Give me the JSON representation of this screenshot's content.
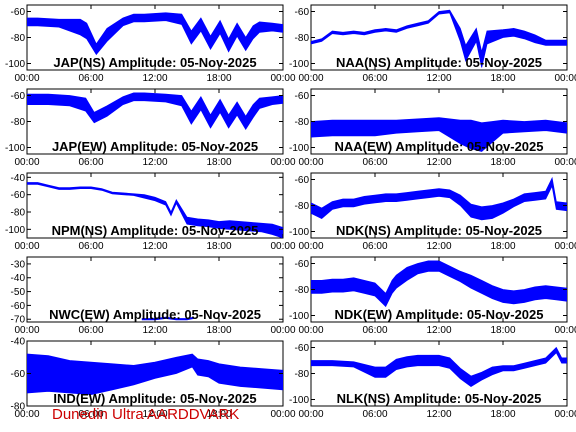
{
  "footer": "Dunedin Ultra AARDDVARK",
  "colors": {
    "trace": "#0000ff",
    "axes": "#000000",
    "footer": "#cc0000"
  },
  "chart_data": [
    {
      "type": "line",
      "title": "JAP(NS) Amplitude: 05-Nov-2025",
      "x_tick_labels": [
        "00:00",
        "06:00",
        "12:00",
        "18:00",
        "00:00"
      ],
      "y_tick_labels": [
        "-60",
        "-80",
        "-100"
      ],
      "xlim": [
        0,
        24
      ],
      "ylim": [
        -105,
        -55
      ],
      "grid": false,
      "series": [
        {
          "x": [
            0,
            1,
            3,
            5,
            5.6,
            6.5,
            7.5,
            9,
            10,
            11,
            13,
            14.5,
            15.4,
            16.3,
            17.2,
            18.1,
            18.9,
            19.7,
            20.5,
            21.2,
            21.8,
            23,
            24
          ],
          "y": [
            -68,
            -68,
            -69,
            -72,
            -75,
            -89,
            -78,
            -68,
            -65,
            -65,
            -64,
            -66,
            -80,
            -70,
            -84,
            -72,
            -86,
            -74,
            -85,
            -76,
            -72,
            -72,
            -73
          ],
          "spread": [
            3,
            3,
            3,
            6,
            6,
            4,
            5,
            3,
            3,
            3,
            3,
            4,
            5,
            5,
            5,
            5,
            5,
            5,
            5,
            5,
            4,
            3,
            3
          ]
        }
      ]
    },
    {
      "type": "line",
      "title": "NAA(NS) Amplitude: 05-Nov-2025",
      "x_tick_labels": [
        "00:00",
        "06:00",
        "12:00",
        "18:00",
        "00:00"
      ],
      "y_tick_labels": [
        "-60",
        "-80",
        "-100"
      ],
      "xlim": [
        0,
        24
      ],
      "ylim": [
        -105,
        -55
      ],
      "grid": false,
      "series": [
        {
          "x": [
            0,
            1,
            2,
            3,
            4,
            5,
            6,
            7,
            8,
            9,
            10,
            11,
            12,
            13,
            14,
            14.5,
            15.5,
            16,
            16.5,
            18,
            19,
            20,
            21,
            22,
            23,
            24
          ],
          "y": [
            -84,
            -82,
            -76,
            -77,
            -76,
            -77,
            -75,
            -74,
            -75,
            -72,
            -70,
            -68,
            -61,
            -60,
            -78,
            -92,
            -78,
            -97,
            -80,
            -77,
            -76,
            -78,
            -81,
            -84,
            -84,
            -84
          ],
          "spread": [
            1,
            1,
            1,
            1,
            1,
            1,
            1,
            1,
            1,
            1,
            1,
            1,
            1,
            1,
            5,
            6,
            5,
            6,
            5,
            3,
            3,
            3,
            3,
            2,
            2,
            2
          ]
        }
      ]
    },
    {
      "type": "line",
      "title": "JAP(EW) Amplitude: 05-Nov-2025",
      "x_tick_labels": [
        "00:00",
        "06:00",
        "12:00",
        "18:00",
        "00:00"
      ],
      "y_tick_labels": [
        "-60",
        "-80",
        "-100"
      ],
      "xlim": [
        0,
        24
      ],
      "ylim": [
        -105,
        -55
      ],
      "grid": false,
      "series": [
        {
          "x": [
            0,
            2,
            4,
            5.5,
            6.3,
            7.5,
            9,
            10,
            11,
            13,
            14.5,
            15.4,
            16.3,
            17.2,
            18.1,
            18.9,
            19.7,
            20.5,
            21.2,
            21.8,
            23,
            24
          ],
          "y": [
            -63,
            -63,
            -64,
            -67,
            -77,
            -72,
            -64,
            -61,
            -61,
            -62,
            -64,
            -77,
            -66,
            -80,
            -68,
            -80,
            -70,
            -81,
            -72,
            -66,
            -64,
            -63
          ],
          "spread": [
            4,
            4,
            4,
            5,
            4,
            4,
            3,
            3,
            3,
            3,
            4,
            5,
            5,
            5,
            5,
            5,
            5,
            5,
            5,
            4,
            3,
            3
          ]
        }
      ]
    },
    {
      "type": "line",
      "title": "NAA(EW) Amplitude: 05-Nov-2025",
      "x_tick_labels": [
        "00:00",
        "06:00",
        "12:00",
        "18:00",
        "00:00"
      ],
      "y_tick_labels": [
        "-60",
        "-80",
        "-100"
      ],
      "xlim": [
        0,
        24
      ],
      "ylim": [
        -105,
        -55
      ],
      "grid": false,
      "series": [
        {
          "x": [
            0,
            2,
            4,
            6,
            8,
            10,
            12,
            13,
            14,
            15,
            16,
            17,
            18,
            20,
            22,
            24
          ],
          "y": [
            -86,
            -85,
            -85,
            -85,
            -84,
            -83,
            -82,
            -85,
            -88,
            -90,
            -92,
            -88,
            -84,
            -84,
            -83,
            -85
          ],
          "spread": [
            6,
            6,
            6,
            6,
            5,
            5,
            5,
            7,
            9,
            11,
            11,
            8,
            5,
            4,
            4,
            4
          ]
        }
      ]
    },
    {
      "type": "line",
      "title": "NPM(NS) Amplitude: 05-Nov-2025",
      "x_tick_labels": [
        "00:00",
        "06:00",
        "12:00",
        "18:00",
        "00:00"
      ],
      "y_tick_labels": [
        "-40",
        "-60",
        "-80",
        "-100"
      ],
      "xlim": [
        0,
        24
      ],
      "ylim": [
        -110,
        -35
      ],
      "grid": false,
      "series": [
        {
          "x": [
            0,
            1,
            2,
            3,
            4,
            5,
            6,
            7,
            8,
            9,
            10,
            11,
            12,
            13,
            13.5,
            14,
            15,
            16,
            17,
            18,
            19,
            20,
            21,
            22,
            23,
            24
          ],
          "y": [
            -47,
            -47,
            -50,
            -53,
            -53,
            -52,
            -52,
            -54,
            -58,
            -59,
            -60,
            -62,
            -65,
            -70,
            -82,
            -68,
            -90,
            -92,
            -93,
            -95,
            -95,
            -96,
            -97,
            -98,
            -100,
            -104
          ],
          "spread": [
            1,
            1,
            1,
            1,
            1,
            1,
            1,
            1,
            1,
            1,
            1,
            2,
            2,
            2,
            2,
            2,
            4,
            4,
            4,
            4,
            5,
            5,
            5,
            5,
            6,
            6
          ]
        }
      ]
    },
    {
      "type": "line",
      "title": "NDK(NS) Amplitude: 05-Nov-2025",
      "x_tick_labels": [
        "00:00",
        "06:00",
        "12:00",
        "18:00",
        "00:00"
      ],
      "y_tick_labels": [
        "-60",
        "-80",
        "-100"
      ],
      "xlim": [
        0,
        24
      ],
      "ylim": [
        -105,
        -55
      ],
      "grid": false,
      "series": [
        {
          "x": [
            0,
            1,
            2,
            3,
            4,
            5,
            6,
            7,
            8,
            9,
            10,
            11,
            12,
            13,
            14,
            15,
            16,
            17,
            18,
            19,
            20,
            21,
            22,
            22.6,
            23,
            24
          ],
          "y": [
            -82,
            -86,
            -80,
            -78,
            -78,
            -76,
            -75,
            -74,
            -74,
            -73,
            -72,
            -71,
            -70,
            -71,
            -76,
            -84,
            -86,
            -85,
            -82,
            -78,
            -74,
            -73,
            -72,
            -62,
            -80,
            -81
          ],
          "spread": [
            4,
            4,
            3,
            3,
            3,
            3,
            3,
            3,
            3,
            3,
            3,
            3,
            3,
            3,
            4,
            5,
            5,
            5,
            4,
            3,
            3,
            3,
            3,
            3,
            3,
            3
          ]
        }
      ]
    },
    {
      "type": "line",
      "title": "NWC(EW) Amplitude: 05-Nov-2025",
      "x_tick_labels": [
        "00:00",
        "06:00",
        "12:00",
        "18:00",
        "00:00"
      ],
      "y_tick_labels": [
        "-30",
        "-40",
        "-50",
        "-60",
        "-70"
      ],
      "xlim": [
        0,
        24
      ],
      "ylim": [
        -72,
        -25
      ],
      "grid": false,
      "series": [
        {
          "x": [
            10.8,
            12,
            13,
            14,
            15,
            15.6
          ],
          "y": [
            -70,
            -70,
            -69,
            -70,
            -70,
            -69
          ],
          "spread": [
            0.5,
            0.5,
            0.5,
            0.5,
            0.5,
            0.5
          ]
        }
      ]
    },
    {
      "type": "line",
      "title": "NDK(EW) Amplitude: 05-Nov-2025",
      "x_tick_labels": [
        "00:00",
        "06:00",
        "12:00",
        "18:00",
        "00:00"
      ],
      "y_tick_labels": [
        "-60",
        "-80",
        "-100"
      ],
      "xlim": [
        0,
        24
      ],
      "ylim": [
        -105,
        -55
      ],
      "grid": false,
      "series": [
        {
          "x": [
            0,
            1,
            2,
            3,
            4,
            5,
            6,
            7,
            7.6,
            8,
            9,
            10,
            11,
            12,
            13,
            14,
            15,
            16,
            17,
            18,
            19,
            20,
            21,
            22,
            23,
            24
          ],
          "y": [
            -78,
            -78,
            -77,
            -77,
            -76,
            -78,
            -80,
            -88,
            -78,
            -74,
            -68,
            -64,
            -62,
            -62,
            -66,
            -70,
            -74,
            -78,
            -82,
            -85,
            -86,
            -85,
            -83,
            -82,
            -83,
            -84
          ],
          "spread": [
            5,
            5,
            5,
            5,
            5,
            5,
            5,
            5,
            5,
            5,
            5,
            4,
            4,
            4,
            4,
            4,
            5,
            5,
            5,
            5,
            5,
            5,
            5,
            5,
            5,
            5
          ]
        }
      ]
    },
    {
      "type": "line",
      "title": "IND(EW) Amplitude: 05-Nov-2025",
      "x_tick_labels": [
        "00:00",
        "06:00",
        "12:00",
        "18:00",
        "00:00"
      ],
      "y_tick_labels": [
        "-40",
        "-60",
        "-80"
      ],
      "xlim": [
        0,
        24
      ],
      "ylim": [
        -80,
        -40
      ],
      "grid": false,
      "series": [
        {
          "x": [
            0,
            2,
            4,
            6,
            8,
            10,
            12,
            14,
            15.5,
            16,
            17,
            18,
            20,
            22,
            24
          ],
          "y": [
            -60,
            -60,
            -62,
            -63,
            -62,
            -61,
            -58,
            -55,
            -52,
            -56,
            -57,
            -60,
            -62,
            -63,
            -64
          ],
          "spread": [
            12,
            11,
            10,
            10,
            8,
            6,
            5,
            5,
            4,
            5,
            5,
            6,
            6,
            6,
            6
          ]
        }
      ]
    },
    {
      "type": "line",
      "title": "NLK(NS) Amplitude: 05-Nov-2025",
      "x_tick_labels": [
        "00:00",
        "06:00",
        "12:00",
        "18:00",
        "00:00"
      ],
      "y_tick_labels": [
        "-60",
        "-80",
        "-100"
      ],
      "xlim": [
        0,
        24
      ],
      "ylim": [
        -105,
        -55
      ],
      "grid": false,
      "series": [
        {
          "x": [
            0,
            2,
            4,
            5,
            6,
            7,
            8,
            9,
            10,
            11,
            12,
            13,
            14,
            15,
            16,
            17,
            18,
            19,
            20,
            21,
            22,
            23,
            23.5,
            24
          ],
          "y": [
            -72,
            -72,
            -73,
            -76,
            -79,
            -79,
            -73,
            -71,
            -70,
            -70,
            -70,
            -72,
            -80,
            -86,
            -82,
            -78,
            -76,
            -76,
            -74,
            -72,
            -70,
            -62,
            -70,
            -70
          ],
          "spread": [
            2,
            2,
            2,
            3,
            4,
            4,
            4,
            4,
            4,
            4,
            4,
            4,
            4,
            4,
            3,
            3,
            2,
            2,
            2,
            2,
            2,
            2,
            2,
            2
          ]
        }
      ]
    }
  ]
}
